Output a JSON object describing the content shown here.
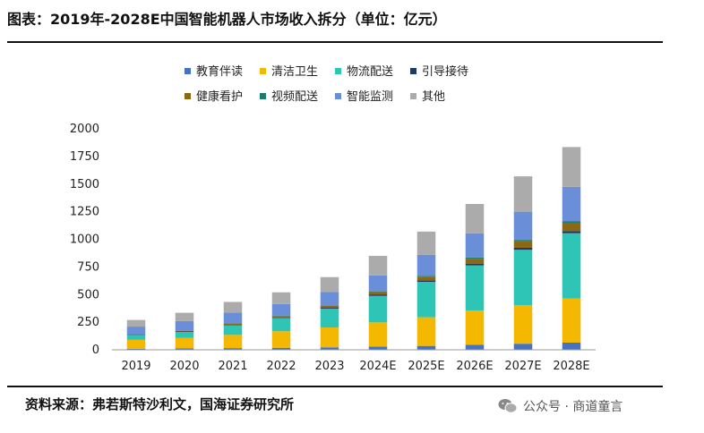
{
  "header": {
    "title": "图表：2019年-2028E中国智能机器人市场收入拆分（单位：亿元）"
  },
  "footer": {
    "source": "资料来源：弗若斯特沙利文，国海证券研究所",
    "watermark": "公众号 · 商道童言"
  },
  "chart_data": {
    "type": "bar",
    "stacked": true,
    "title": "",
    "xlabel": "",
    "ylabel": "",
    "ylim": [
      0,
      2000
    ],
    "yticks": [
      0,
      250,
      500,
      750,
      1000,
      1250,
      1500,
      1750,
      2000
    ],
    "legend_position": "top",
    "categories": [
      "2019",
      "2020",
      "2021",
      "2022",
      "2023",
      "2024E",
      "2025E",
      "2026E",
      "2027E",
      "2028E"
    ],
    "series": [
      {
        "name": "教育伴读",
        "color": "#4472C4",
        "values": [
          10,
          12,
          15,
          18,
          22,
          28,
          35,
          45,
          55,
          65
        ]
      },
      {
        "name": "清洁卫生",
        "color": "#F5B800",
        "values": [
          80,
          95,
          120,
          150,
          180,
          220,
          260,
          310,
          350,
          400
        ]
      },
      {
        "name": "物流配送",
        "color": "#2EC4B6",
        "values": [
          45,
          55,
          85,
          120,
          170,
          240,
          320,
          410,
          500,
          590
        ]
      },
      {
        "name": "引导接待",
        "color": "#1F3864",
        "values": [
          3,
          4,
          5,
          6,
          8,
          10,
          12,
          15,
          18,
          20
        ]
      },
      {
        "name": "健康看护",
        "color": "#8B6914",
        "values": [
          5,
          7,
          10,
          12,
          18,
          25,
          35,
          45,
          60,
          75
        ]
      },
      {
        "name": "视频配送",
        "color": "#1E7B6E",
        "values": [
          2,
          2,
          3,
          4,
          5,
          6,
          8,
          10,
          12,
          15
        ]
      },
      {
        "name": "智能监测",
        "color": "#6A8FD8",
        "values": [
          65,
          85,
          100,
          105,
          120,
          145,
          190,
          220,
          255,
          310
        ]
      },
      {
        "name": "其他",
        "color": "#ABABAB",
        "values": [
          60,
          75,
          95,
          105,
          135,
          176,
          210,
          265,
          320,
          360
        ]
      }
    ]
  }
}
